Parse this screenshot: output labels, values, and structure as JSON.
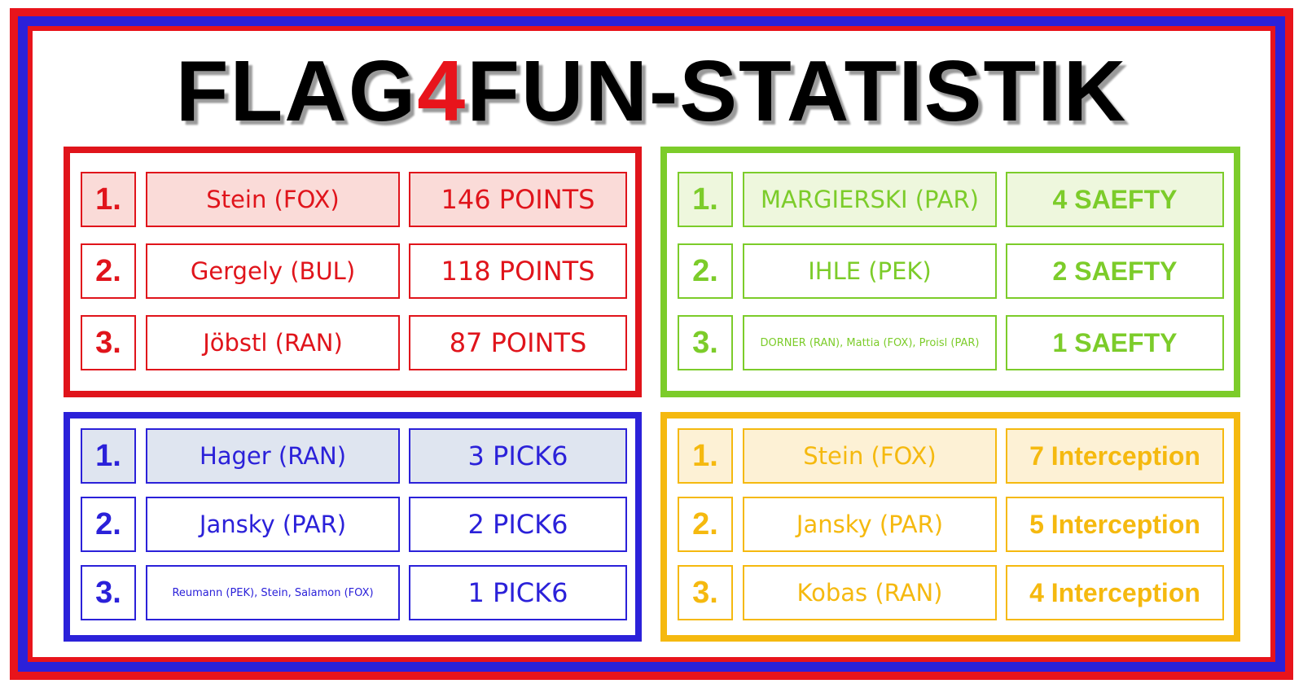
{
  "title": {
    "part1": "FLAG",
    "part2": "4",
    "part3": "FUN-STATISTIK"
  },
  "panels": [
    {
      "rows": [
        {
          "rank": "1.",
          "name": "Stein (FOX)",
          "stat": "146 POINTS"
        },
        {
          "rank": "2.",
          "name": "Gergely (BUL)",
          "stat": "118 POINTS"
        },
        {
          "rank": "3.",
          "name": "Jöbstl (RAN)",
          "stat": "87 POINTS"
        }
      ]
    },
    {
      "rows": [
        {
          "rank": "1.",
          "name": "MARGIERSKI (PAR)",
          "stat": "4 SAEFTY"
        },
        {
          "rank": "2.",
          "name": "IHLE (PEK)",
          "stat": "2 SAEFTY"
        },
        {
          "rank": "3.",
          "name": "DORNER (RAN), Mattia (FOX), Proisl (PAR)",
          "stat": "1 SAEFTY"
        }
      ]
    },
    {
      "rows": [
        {
          "rank": "1.",
          "name": "Hager (RAN)",
          "stat": "3 PICK6"
        },
        {
          "rank": "2.",
          "name": "Jansky (PAR)",
          "stat": "2 PICK6"
        },
        {
          "rank": "3.",
          "name": "Reumann (PEK), Stein, Salamon (FOX)",
          "stat": "1 PICK6"
        }
      ]
    },
    {
      "rows": [
        {
          "rank": "1.",
          "name": "Stein (FOX)",
          "stat": "7 Interception"
        },
        {
          "rank": "2.",
          "name": "Jansky (PAR)",
          "stat": "5 Interception"
        },
        {
          "rank": "3.",
          "name": "Kobas (RAN)",
          "stat": "4 Interception"
        }
      ]
    }
  ]
}
